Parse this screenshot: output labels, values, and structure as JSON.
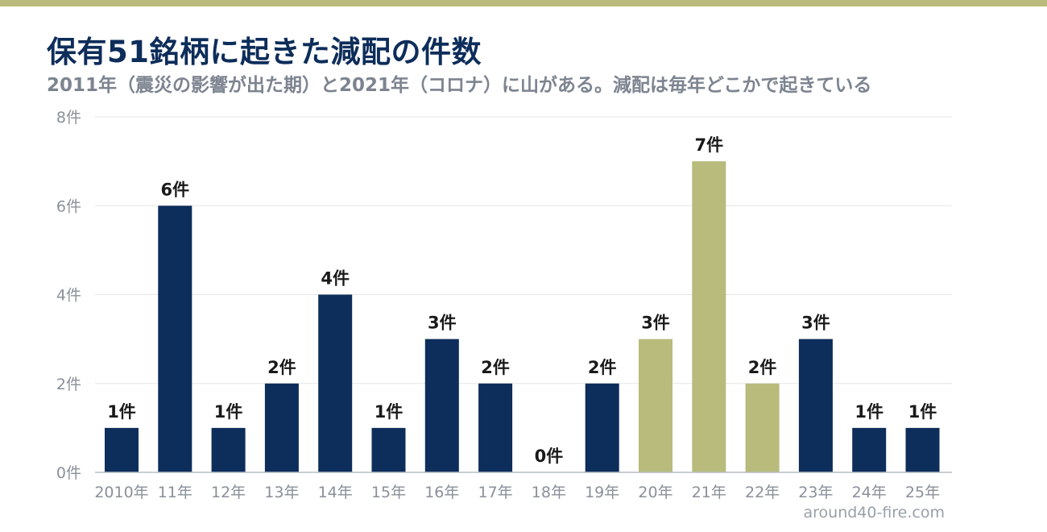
{
  "title": "保有51銘柄に起きた減配の件数",
  "subtitle": "2011年（震災の影響が出た期）と2021年（コロナ）に山がある。減配は毎年どこかで起きている",
  "footer": "around40-fire.com",
  "colors": {
    "top_bar": "#b8bb7c",
    "title": "#0d2d5a",
    "subtitle": "#7d8490",
    "bar_default": "#0d2d5a",
    "bar_highlight": "#b8bb7c",
    "grid": "#e6e6e6",
    "axis_line": "#b8bcc4",
    "tick_text": "#8a909a",
    "data_label": "#1a1a1a"
  },
  "chart_data": {
    "type": "bar",
    "title": "保有51銘柄に起きた減配の件数",
    "categories": [
      "2010年",
      "11年",
      "12年",
      "13年",
      "14年",
      "15年",
      "16年",
      "17年",
      "18年",
      "19年",
      "20年",
      "21年",
      "22年",
      "23年",
      "24年",
      "25年"
    ],
    "values": [
      1,
      6,
      1,
      2,
      4,
      1,
      3,
      2,
      0,
      2,
      3,
      7,
      2,
      3,
      1,
      1
    ],
    "data_labels": [
      "1件",
      "6件",
      "1件",
      "2件",
      "4件",
      "1件",
      "3件",
      "2件",
      "0件",
      "2件",
      "3件",
      "7件",
      "2件",
      "3件",
      "1件",
      "1件"
    ],
    "highlight": [
      false,
      false,
      false,
      false,
      false,
      false,
      false,
      false,
      false,
      false,
      true,
      true,
      true,
      false,
      false,
      false
    ],
    "y_ticks": [
      0,
      2,
      4,
      6,
      8
    ],
    "y_tick_labels": [
      "0件",
      "2件",
      "4件",
      "6件",
      "8件"
    ],
    "ylim": [
      0,
      8
    ],
    "xlabel": "",
    "ylabel": "",
    "grid": true,
    "legend": "none"
  }
}
